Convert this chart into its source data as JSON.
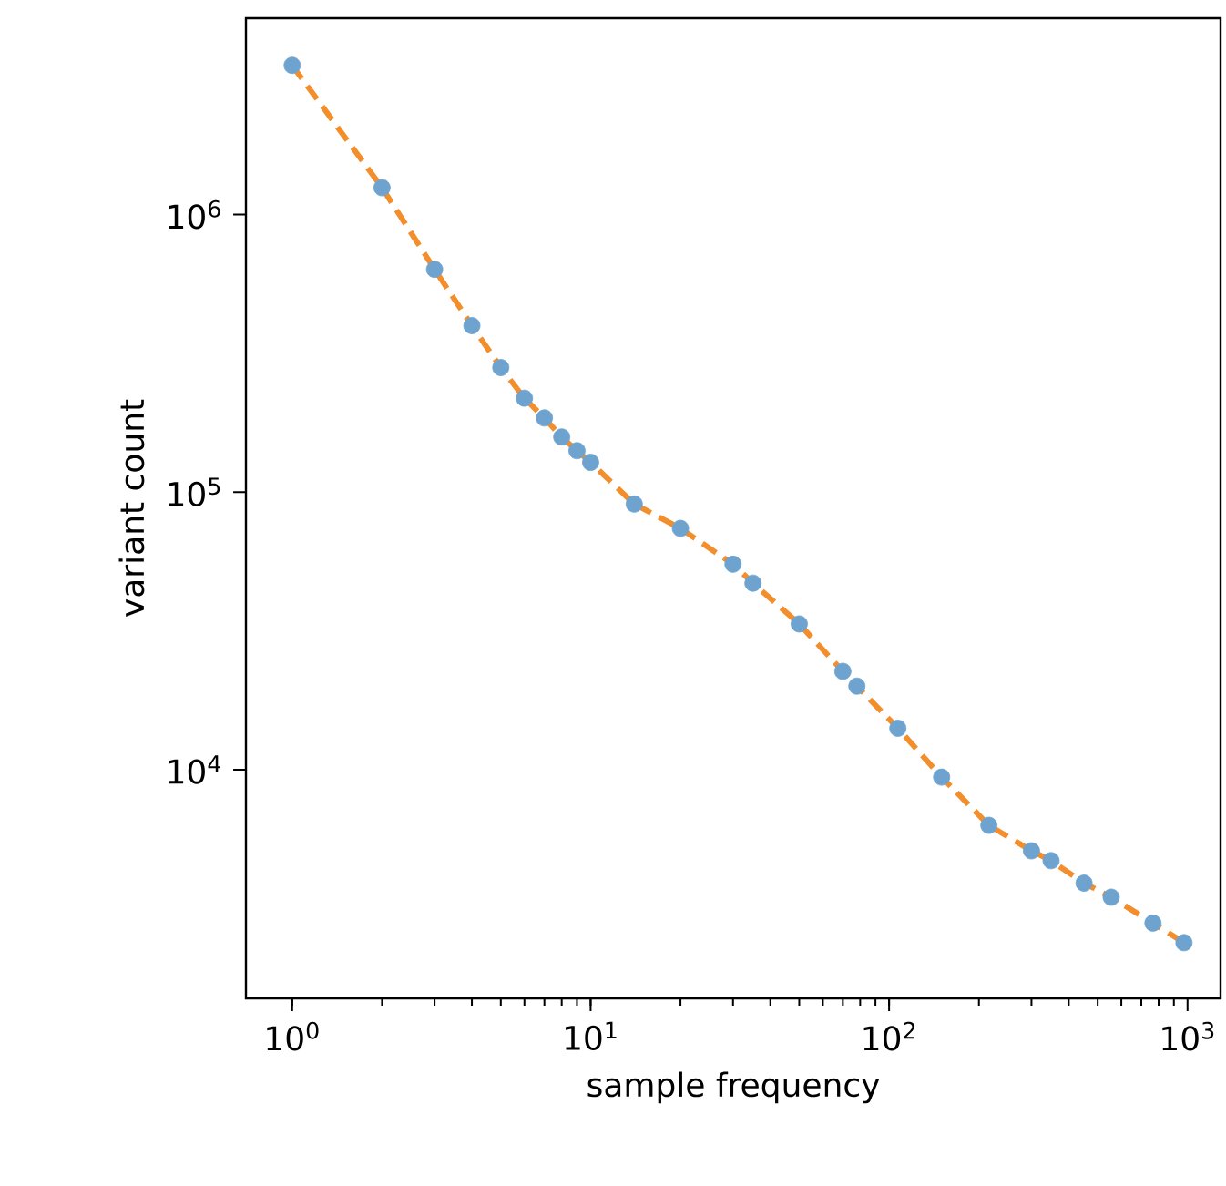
{
  "chart_data": {
    "type": "scatter",
    "xlabel": "sample frequency",
    "ylabel": "variant count",
    "log": "xy",
    "grid": false,
    "xlim": [
      0.7,
      1290
    ],
    "ylim": [
      1500,
      5100000
    ],
    "xticks": [
      {
        "value": 1,
        "label": "10$^{0}$"
      },
      {
        "value": 10,
        "label": "10$^{1}$"
      },
      {
        "value": 100,
        "label": "10$^{2}$"
      },
      {
        "value": 1000,
        "label": "10$^{3}$"
      }
    ],
    "yticks": [
      {
        "value": 10000,
        "label": "10$^{4}$"
      },
      {
        "value": 100000,
        "label": "10$^{5}$"
      },
      {
        "value": 1000000,
        "label": "10$^{6}$"
      }
    ],
    "series": [
      {
        "color": "#6fa3cf",
        "marker": "circle",
        "x": [
          1,
          2,
          3,
          4,
          5,
          6,
          7,
          8,
          9,
          10,
          14,
          20,
          30,
          35,
          50,
          70,
          78,
          107,
          150,
          216,
          300,
          349,
          450,
          555,
          766,
          973
        ],
        "values": [
          3450000,
          1250000,
          635000,
          398000,
          281000,
          218000,
          185000,
          158000,
          141000,
          128000,
          90600,
          74000,
          55000,
          47000,
          33500,
          22600,
          20000,
          14100,
          9400,
          6300,
          5100,
          4700,
          3900,
          3470,
          2800,
          2380
        ]
      },
      {
        "type": "line",
        "color": "#f28e2b",
        "marker": "none",
        "line_style": "dashed",
        "x": [
          1,
          2,
          3,
          4,
          5,
          6,
          7,
          8,
          9,
          10,
          14,
          20,
          30,
          35,
          50,
          70,
          78,
          107,
          150,
          216,
          300,
          349,
          450,
          555,
          766,
          973
        ],
        "values": [
          3450000,
          1250000,
          635000,
          398000,
          281000,
          218000,
          185000,
          158000,
          141000,
          128000,
          90600,
          74000,
          55000,
          47000,
          33500,
          22600,
          20000,
          14100,
          9400,
          6300,
          5100,
          4700,
          3900,
          3470,
          2800,
          2380
        ]
      }
    ]
  }
}
